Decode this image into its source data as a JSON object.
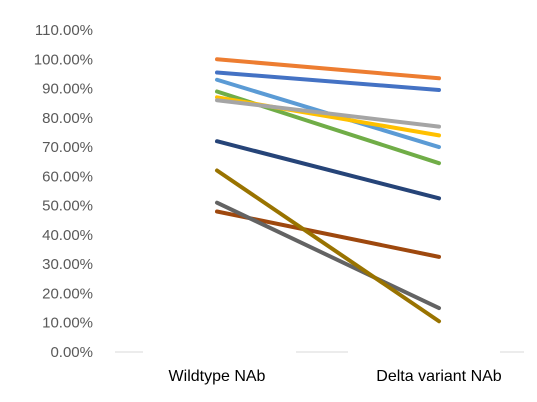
{
  "chart_data": {
    "type": "line",
    "title": "",
    "xlabel": "",
    "ylabel": "",
    "categories": [
      "Wildtype NAb",
      "Delta variant NAb"
    ],
    "ylim": [
      0,
      110
    ],
    "y_tick_step": 10,
    "y_tick_format": "percent_2dp",
    "y_tick_labels": [
      "0.00%",
      "10.00%",
      "20.00%",
      "30.00%",
      "40.00%",
      "50.00%",
      "60.00%",
      "70.00%",
      "80.00%",
      "90.00%",
      "100.00%",
      "110.00%"
    ],
    "grid": false,
    "legend": "none",
    "series": [
      {
        "color": "#ED7D31",
        "values": [
          100.0,
          93.5
        ]
      },
      {
        "color": "#4472C4",
        "values": [
          95.5,
          89.5
        ]
      },
      {
        "color": "#5B9BD5",
        "values": [
          93.0,
          70.0
        ]
      },
      {
        "color": "#70AD47",
        "values": [
          89.0,
          64.5
        ]
      },
      {
        "color": "#FFC000",
        "values": [
          87.0,
          74.0
        ]
      },
      {
        "color": "#A5A5A5",
        "values": [
          86.0,
          77.0
        ]
      },
      {
        "color": "#264478",
        "values": [
          72.0,
          52.5
        ]
      },
      {
        "color": "#9E480E",
        "values": [
          48.0,
          32.5
        ]
      },
      {
        "color": "#636363",
        "values": [
          51.0,
          15.0
        ]
      },
      {
        "color": "#997300",
        "values": [
          62.0,
          10.5
        ]
      }
    ]
  }
}
